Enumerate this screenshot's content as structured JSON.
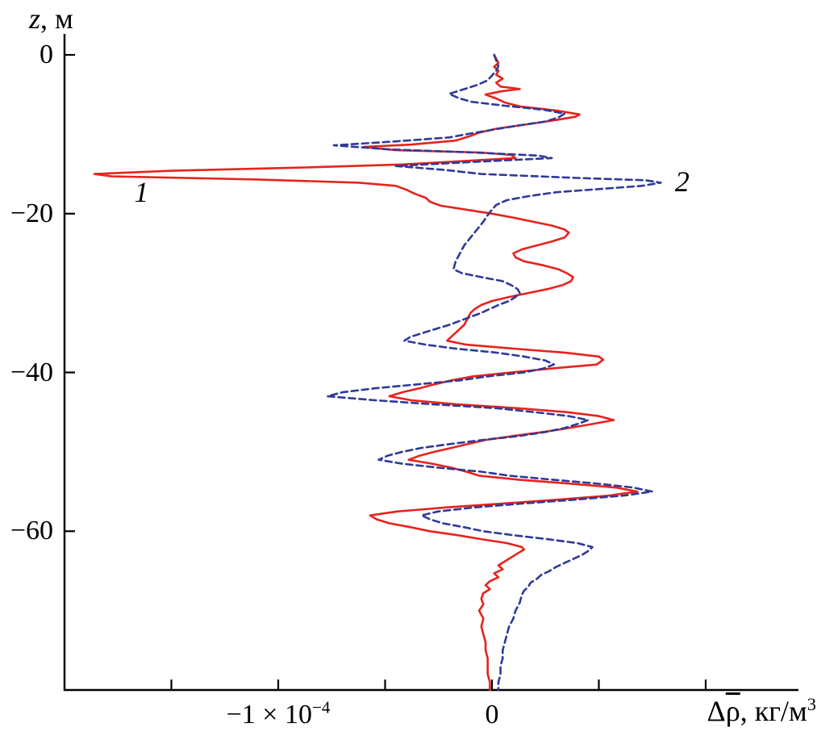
{
  "chart_data": {
    "type": "line",
    "variant": "vertical-depth-profile",
    "title": "",
    "xlabel": "Δρ̄, кг/м³",
    "ylabel": "z, м",
    "ylabel_parts": {
      "var": "z",
      "units": ", м"
    },
    "xlabel_parts": {
      "delta": "Δ",
      "rho": "ρ",
      "units": ", кг/м",
      "sup": "3"
    },
    "x_units_note": "x values in units of 10⁻⁴ кг/м³",
    "xlim": [
      -2.0,
      1.415
    ],
    "ylim": [
      -80,
      0
    ],
    "grid": false,
    "legend_position": "inline-curve-labels",
    "axis_color": "#000000",
    "background": "#ffffff",
    "x_ticks": [
      {
        "value": -1.5,
        "label_base": "",
        "label_sup": ""
      },
      {
        "value": -1.0,
        "label_base": "−1 × 10",
        "label_sup": "−4"
      },
      {
        "value": -0.5,
        "label_base": "",
        "label_sup": ""
      },
      {
        "value": 0.0,
        "label_base": "0",
        "label_sup": ""
      },
      {
        "value": 0.5,
        "label_base": "",
        "label_sup": ""
      },
      {
        "value": 1.0,
        "label_base": "",
        "label_sup": ""
      }
    ],
    "y_ticks": [
      {
        "value": 0,
        "label": "0"
      },
      {
        "value": -20,
        "label": "−20"
      },
      {
        "value": -40,
        "label": "−40"
      },
      {
        "value": -60,
        "label": "−60"
      }
    ],
    "point_format": [
      "delta_rho_in_1e-4_kg_m3",
      "z_m"
    ],
    "series": [
      {
        "name": "1",
        "color": "#e8221c",
        "style": "solid",
        "label_pos": {
          "x": -1.64,
          "z": -17.3
        },
        "points": [
          [
            0.01,
            0
          ],
          [
            0.02,
            -0.5
          ],
          [
            0.03,
            -1
          ],
          [
            0.01,
            -1.5
          ],
          [
            0.03,
            -2
          ],
          [
            0.02,
            -2.5
          ],
          [
            0.05,
            -3
          ],
          [
            0.02,
            -3.5
          ],
          [
            0.04,
            -4
          ],
          [
            0.13,
            -4.3
          ],
          [
            0.04,
            -4.6
          ],
          [
            -0.03,
            -5
          ],
          [
            0.02,
            -5.5
          ],
          [
            0.06,
            -6
          ],
          [
            0.13,
            -6.5
          ],
          [
            0.3,
            -7
          ],
          [
            0.41,
            -7.5
          ],
          [
            0.39,
            -7.8
          ],
          [
            0.3,
            -8.2
          ],
          [
            0.15,
            -8.8
          ],
          [
            0.02,
            -9.3
          ],
          [
            -0.06,
            -9.8
          ],
          [
            -0.11,
            -10.3
          ],
          [
            -0.17,
            -10.8
          ],
          [
            -0.38,
            -11.3
          ],
          [
            -0.6,
            -11.6
          ],
          [
            -0.45,
            -12
          ],
          [
            -0.05,
            -12.3
          ],
          [
            0.09,
            -12.6
          ],
          [
            0.11,
            -13
          ],
          [
            -0.15,
            -13.4
          ],
          [
            -0.42,
            -13.8
          ],
          [
            -0.9,
            -14.2
          ],
          [
            -1.5,
            -14.6
          ],
          [
            -1.86,
            -15
          ],
          [
            -1.78,
            -15.3
          ],
          [
            -1.1,
            -15.7
          ],
          [
            -0.62,
            -16.1
          ],
          [
            -0.45,
            -16.5
          ],
          [
            -0.4,
            -17
          ],
          [
            -0.36,
            -17.5
          ],
          [
            -0.31,
            -18
          ],
          [
            -0.29,
            -18.5
          ],
          [
            -0.24,
            -19
          ],
          [
            -0.12,
            -19.5
          ],
          [
            0.0,
            -20
          ],
          [
            0.1,
            -20.5
          ],
          [
            0.19,
            -21
          ],
          [
            0.28,
            -21.5
          ],
          [
            0.34,
            -22
          ],
          [
            0.36,
            -22.4
          ],
          [
            0.34,
            -23
          ],
          [
            0.28,
            -23.5
          ],
          [
            0.21,
            -24
          ],
          [
            0.14,
            -24.5
          ],
          [
            0.1,
            -25
          ],
          [
            0.11,
            -25.5
          ],
          [
            0.15,
            -26
          ],
          [
            0.24,
            -26.5
          ],
          [
            0.31,
            -27
          ],
          [
            0.35,
            -27.5
          ],
          [
            0.38,
            -28
          ],
          [
            0.37,
            -28.5
          ],
          [
            0.33,
            -29
          ],
          [
            0.26,
            -29.5
          ],
          [
            0.17,
            -30
          ],
          [
            0.08,
            -30.5
          ],
          [
            0.0,
            -31
          ],
          [
            -0.05,
            -31.5
          ],
          [
            -0.08,
            -32
          ],
          [
            -0.1,
            -32.5
          ],
          [
            -0.11,
            -33
          ],
          [
            -0.12,
            -33.5
          ],
          [
            -0.13,
            -34
          ],
          [
            -0.15,
            -34.5
          ],
          [
            -0.17,
            -35
          ],
          [
            -0.19,
            -35.5
          ],
          [
            -0.21,
            -36
          ],
          [
            -0.12,
            -36.5
          ],
          [
            0.1,
            -37
          ],
          [
            0.34,
            -37.5
          ],
          [
            0.5,
            -38
          ],
          [
            0.52,
            -38.4
          ],
          [
            0.49,
            -39
          ],
          [
            0.28,
            -39.5
          ],
          [
            0.09,
            -40
          ],
          [
            -0.09,
            -40.5
          ],
          [
            -0.19,
            -41
          ],
          [
            -0.27,
            -41.5
          ],
          [
            -0.34,
            -42
          ],
          [
            -0.42,
            -42.5
          ],
          [
            -0.48,
            -43
          ],
          [
            -0.38,
            -43.5
          ],
          [
            -0.17,
            -44
          ],
          [
            0.12,
            -44.5
          ],
          [
            0.35,
            -45
          ],
          [
            0.5,
            -45.5
          ],
          [
            0.57,
            -46
          ],
          [
            0.47,
            -46.5
          ],
          [
            0.36,
            -47
          ],
          [
            0.24,
            -47.5
          ],
          [
            0.1,
            -48
          ],
          [
            -0.03,
            -48.5
          ],
          [
            -0.11,
            -49
          ],
          [
            -0.19,
            -49.5
          ],
          [
            -0.27,
            -50
          ],
          [
            -0.34,
            -50.5
          ],
          [
            -0.39,
            -51
          ],
          [
            -0.28,
            -51.5
          ],
          [
            -0.19,
            -52
          ],
          [
            -0.12,
            -52.5
          ],
          [
            -0.06,
            -53
          ],
          [
            0.12,
            -53.5
          ],
          [
            0.36,
            -54
          ],
          [
            0.58,
            -54.5
          ],
          [
            0.68,
            -55
          ],
          [
            0.55,
            -55.5
          ],
          [
            0.32,
            -56
          ],
          [
            0.06,
            -56.5
          ],
          [
            -0.21,
            -57
          ],
          [
            -0.44,
            -57.5
          ],
          [
            -0.57,
            -58
          ],
          [
            -0.54,
            -58.5
          ],
          [
            -0.48,
            -59
          ],
          [
            -0.38,
            -59.5
          ],
          [
            -0.29,
            -60
          ],
          [
            -0.16,
            -60.5
          ],
          [
            -0.05,
            -61
          ],
          [
            0.07,
            -61.5
          ],
          [
            0.14,
            -62
          ],
          [
            0.15,
            -62.3
          ],
          [
            0.12,
            -62.8
          ],
          [
            0.09,
            -63.3
          ],
          [
            0.06,
            -63.8
          ],
          [
            0.03,
            -64.3
          ],
          [
            0.05,
            -64.8
          ],
          [
            0.01,
            -65.3
          ],
          [
            0.03,
            -65.8
          ],
          [
            -0.01,
            -66.3
          ],
          [
            -0.03,
            -66.8
          ],
          [
            -0.01,
            -67.3
          ],
          [
            -0.04,
            -67.8
          ],
          [
            -0.05,
            -68.5
          ],
          [
            -0.04,
            -69.2
          ],
          [
            -0.06,
            -70
          ],
          [
            -0.04,
            -71
          ],
          [
            -0.05,
            -72
          ],
          [
            -0.04,
            -73
          ],
          [
            -0.03,
            -74
          ],
          [
            -0.03,
            -75
          ],
          [
            -0.02,
            -76
          ],
          [
            -0.02,
            -77
          ],
          [
            -0.02,
            -78
          ],
          [
            -0.01,
            -79
          ],
          [
            -0.01,
            -80
          ]
        ]
      },
      {
        "name": "2",
        "color": "#2e3a97",
        "style": "dashed",
        "label_pos": {
          "x": 0.89,
          "z": -16.0
        },
        "points": [
          [
            0.01,
            0
          ],
          [
            0.02,
            -0.7
          ],
          [
            0.03,
            -1.4
          ],
          [
            0.02,
            -2
          ],
          [
            0.0,
            -2.6
          ],
          [
            -0.02,
            -3.2
          ],
          [
            -0.07,
            -3.8
          ],
          [
            -0.14,
            -4.4
          ],
          [
            -0.2,
            -4.9
          ],
          [
            -0.16,
            -5.4
          ],
          [
            -0.1,
            -5.9
          ],
          [
            0.06,
            -6.4
          ],
          [
            0.24,
            -6.9
          ],
          [
            0.34,
            -7.4
          ],
          [
            0.31,
            -7.9
          ],
          [
            0.25,
            -8.4
          ],
          [
            0.12,
            -8.9
          ],
          [
            0.01,
            -9.4
          ],
          [
            -0.1,
            -9.9
          ],
          [
            -0.2,
            -10.4
          ],
          [
            -0.45,
            -10.9
          ],
          [
            -0.74,
            -11.4
          ],
          [
            -0.48,
            -11.9
          ],
          [
            -0.08,
            -12.3
          ],
          [
            0.22,
            -12.7
          ],
          [
            0.28,
            -13
          ],
          [
            -0.1,
            -13.5
          ],
          [
            -0.45,
            -14
          ],
          [
            -0.22,
            -14.5
          ],
          [
            -0.05,
            -15
          ],
          [
            0.4,
            -15.5
          ],
          [
            0.72,
            -15.8
          ],
          [
            0.79,
            -16.1
          ],
          [
            0.7,
            -16.5
          ],
          [
            0.5,
            -16.9
          ],
          [
            0.3,
            -17.3
          ],
          [
            0.17,
            -17.8
          ],
          [
            0.07,
            -18.3
          ],
          [
            0.02,
            -18.9
          ],
          [
            0.0,
            -19.5
          ],
          [
            -0.02,
            -20.2
          ],
          [
            -0.04,
            -21
          ],
          [
            -0.07,
            -22
          ],
          [
            -0.1,
            -23
          ],
          [
            -0.13,
            -24
          ],
          [
            -0.15,
            -25
          ],
          [
            -0.17,
            -26
          ],
          [
            -0.18,
            -27
          ],
          [
            -0.14,
            -27.5
          ],
          [
            -0.05,
            -28
          ],
          [
            0.05,
            -28.5
          ],
          [
            0.09,
            -29
          ],
          [
            0.12,
            -29.5
          ],
          [
            0.13,
            -30
          ],
          [
            0.11,
            -30.5
          ],
          [
            0.08,
            -31
          ],
          [
            0.03,
            -31.5
          ],
          [
            -0.01,
            -32
          ],
          [
            -0.05,
            -32.5
          ],
          [
            -0.1,
            -33
          ],
          [
            -0.15,
            -33.5
          ],
          [
            -0.2,
            -34
          ],
          [
            -0.26,
            -34.5
          ],
          [
            -0.32,
            -35
          ],
          [
            -0.38,
            -35.5
          ],
          [
            -0.41,
            -36
          ],
          [
            -0.31,
            -36.5
          ],
          [
            -0.17,
            -37
          ],
          [
            0.02,
            -37.5
          ],
          [
            0.15,
            -38
          ],
          [
            0.25,
            -38.5
          ],
          [
            0.29,
            -39
          ],
          [
            0.24,
            -39.5
          ],
          [
            0.15,
            -40
          ],
          [
            -0.02,
            -40.5
          ],
          [
            -0.15,
            -41
          ],
          [
            -0.35,
            -41.5
          ],
          [
            -0.55,
            -42
          ],
          [
            -0.7,
            -42.5
          ],
          [
            -0.77,
            -43
          ],
          [
            -0.55,
            -43.5
          ],
          [
            -0.28,
            -44
          ],
          [
            0.02,
            -44.5
          ],
          [
            0.2,
            -45
          ],
          [
            0.36,
            -45.5
          ],
          [
            0.45,
            -46
          ],
          [
            0.4,
            -46.5
          ],
          [
            0.34,
            -47
          ],
          [
            0.25,
            -47.5
          ],
          [
            0.13,
            -48
          ],
          [
            -0.04,
            -48.5
          ],
          [
            -0.19,
            -49
          ],
          [
            -0.33,
            -49.5
          ],
          [
            -0.42,
            -50
          ],
          [
            -0.49,
            -50.5
          ],
          [
            -0.53,
            -51
          ],
          [
            -0.42,
            -51.5
          ],
          [
            -0.25,
            -52
          ],
          [
            -0.05,
            -52.5
          ],
          [
            0.08,
            -53
          ],
          [
            0.28,
            -53.5
          ],
          [
            0.49,
            -54
          ],
          [
            0.66,
            -54.5
          ],
          [
            0.75,
            -55
          ],
          [
            0.62,
            -55.5
          ],
          [
            0.4,
            -56
          ],
          [
            0.15,
            -56.5
          ],
          [
            -0.08,
            -57
          ],
          [
            -0.25,
            -57.5
          ],
          [
            -0.33,
            -58
          ],
          [
            -0.29,
            -58.5
          ],
          [
            -0.23,
            -59
          ],
          [
            -0.13,
            -59.5
          ],
          [
            -0.04,
            -60
          ],
          [
            0.1,
            -60.5
          ],
          [
            0.26,
            -61
          ],
          [
            0.4,
            -61.5
          ],
          [
            0.47,
            -62
          ],
          [
            0.45,
            -62.5
          ],
          [
            0.42,
            -63
          ],
          [
            0.38,
            -63.5
          ],
          [
            0.34,
            -64
          ],
          [
            0.3,
            -64.5
          ],
          [
            0.27,
            -65
          ],
          [
            0.23,
            -65.5
          ],
          [
            0.21,
            -66
          ],
          [
            0.18,
            -66.5
          ],
          [
            0.17,
            -67
          ],
          [
            0.15,
            -67.5
          ],
          [
            0.14,
            -68
          ],
          [
            0.13,
            -69
          ],
          [
            0.11,
            -70
          ],
          [
            0.1,
            -71
          ],
          [
            0.08,
            -72
          ],
          [
            0.07,
            -73
          ],
          [
            0.06,
            -74
          ],
          [
            0.05,
            -75
          ],
          [
            0.05,
            -76
          ],
          [
            0.04,
            -77
          ],
          [
            0.04,
            -78
          ],
          [
            0.03,
            -79
          ],
          [
            0.03,
            -80
          ]
        ]
      }
    ]
  }
}
